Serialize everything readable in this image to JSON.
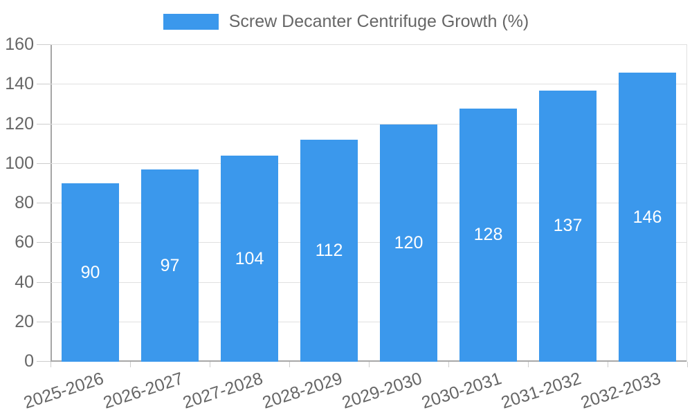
{
  "chart_data": {
    "type": "bar",
    "title": "Screw Decanter Centrifuge Growth (%)",
    "categories": [
      "2025-2026",
      "2026-2027",
      "2027-2028",
      "2028-2029",
      "2029-2030",
      "2030-2031",
      "2031-2032",
      "2032-2033"
    ],
    "values": [
      90,
      97,
      104,
      112,
      120,
      128,
      137,
      146
    ],
    "xlabel": "",
    "ylabel": "",
    "ylim": [
      0,
      160
    ],
    "ytick_step": 20,
    "grid": true,
    "legend_position": "top-center",
    "colors": {
      "bar": "#3b98ec",
      "value_label": "#ffffff",
      "axis_border": "#a6a6a6",
      "gridline": "#e0e0e0",
      "tick": "#cccccc",
      "tick_label": "#666666"
    }
  }
}
